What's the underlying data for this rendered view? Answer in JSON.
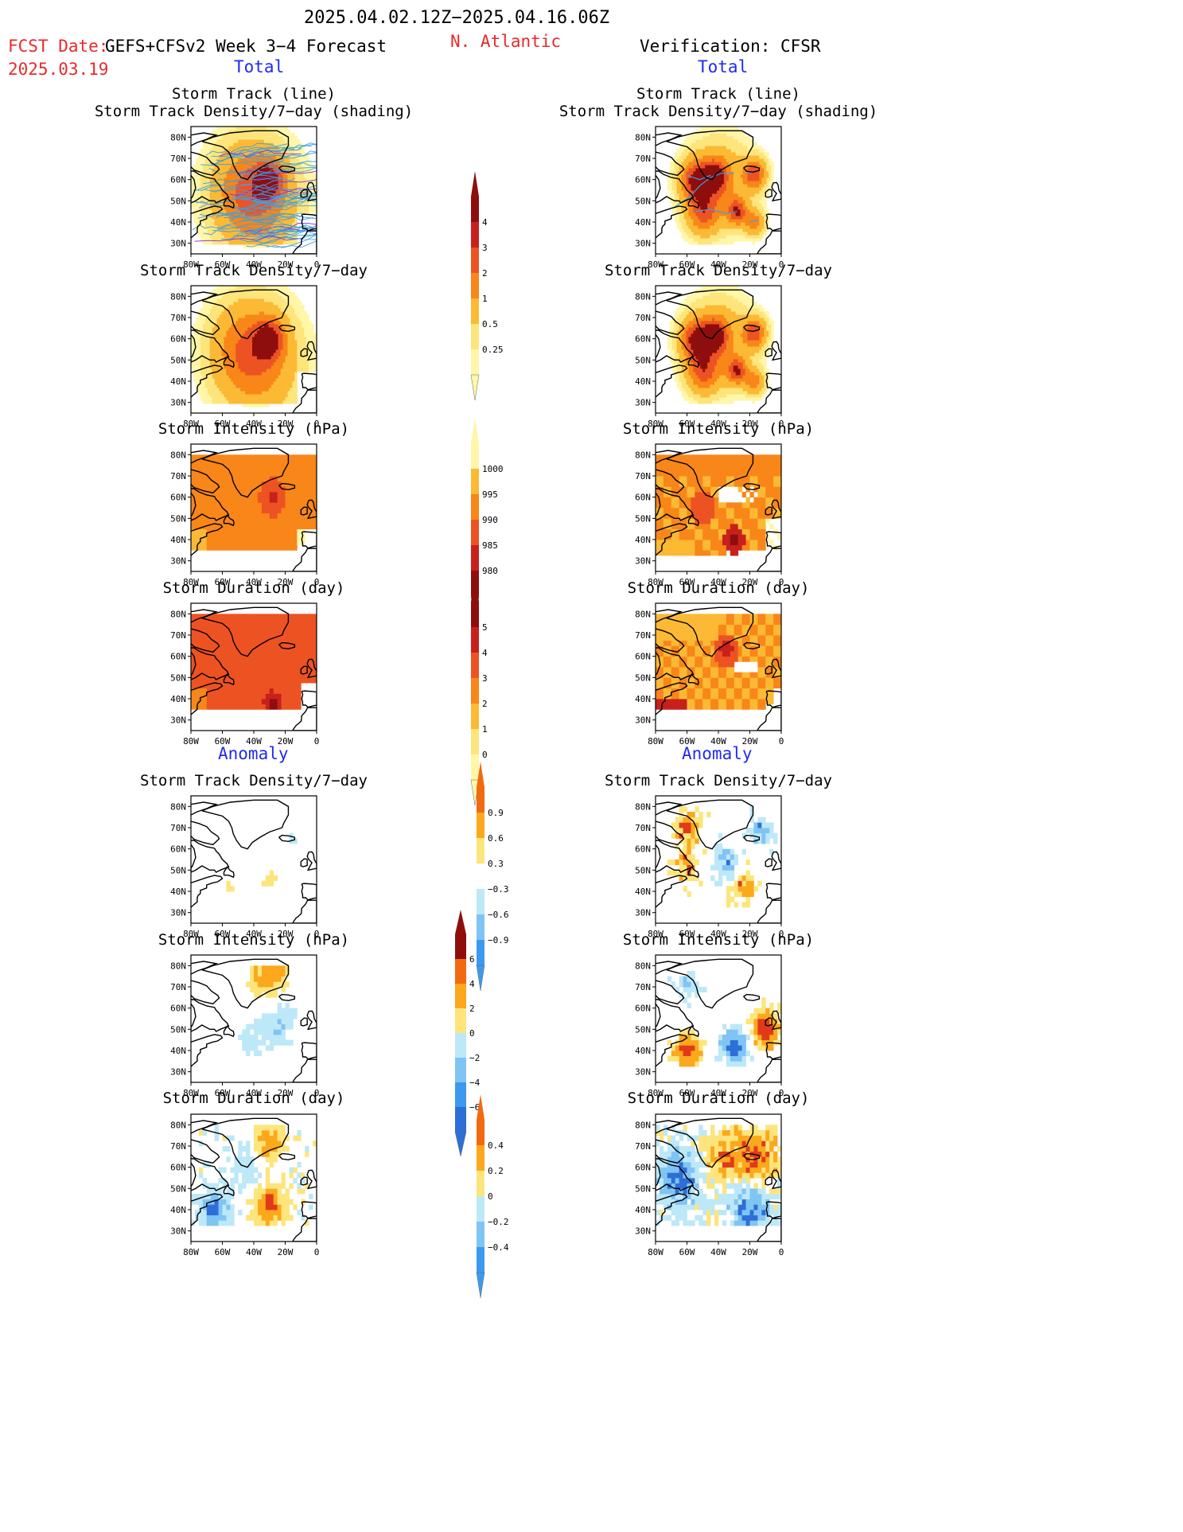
{
  "header": {
    "date_range": "2025.04.02.12Z−2025.04.16.06Z",
    "fcst_label": "FCST Date:",
    "fcst_product": "GEFS+CFSv2 Week 3−4 Forecast",
    "fcst_date": "2025.03.19",
    "region": "N. Atlantic",
    "verification": "Verification: CFSR",
    "total_left": "Total",
    "total_right": "Total",
    "anomaly_left": "Anomaly",
    "anomaly_right": "Anomaly"
  },
  "axes": {
    "lat_ticks": [
      "80N",
      "70N",
      "60N",
      "50N",
      "40N",
      "30N"
    ],
    "lon_ticks": [
      "80W",
      "60W",
      "40W",
      "20W",
      "0"
    ]
  },
  "titles": {
    "track_line": "Storm Track (line)",
    "track_shading": "Storm Track Density/7−day (shading)",
    "density": "Storm Track Density/7−day",
    "intensity": "Storm Intensity (hPa)",
    "duration": "Storm Duration (day)"
  },
  "colors": {
    "total_density": [
      "#fff6a8",
      "#fde57c",
      "#fbb934",
      "#f88618",
      "#ed5322",
      "#c8201c",
      "#8e0e0e"
    ],
    "intensity": [
      "#fff6a8",
      "#fbb934",
      "#f88618",
      "#ed5322",
      "#c8201c",
      "#8e0e0e"
    ],
    "anomaly": [
      "#2c6fd8",
      "#3b9af0",
      "#80c4f4",
      "#bde8f7",
      "#ffffff",
      "#fde57c",
      "#fca81c",
      "#f26a10",
      "#e13a1a",
      "#8e0e0e"
    ],
    "track_line": "#3fa0e0"
  },
  "chart_data": [
    {
      "type": "heatmap",
      "name": "fcst-total-track-density",
      "panel": "forecast total",
      "title": "Storm Track (line) / Storm Track Density/7−day (shading)",
      "xlim": [
        -80,
        0
      ],
      "ylim": [
        25,
        85
      ],
      "blobs": [
        {
          "lon": -30,
          "lat": 60,
          "value": 3.2,
          "r": 9
        },
        {
          "lon": -45,
          "lat": 55,
          "value": 2.2,
          "r": 22
        },
        {
          "lon": -35,
          "lat": 48,
          "value": 1.6,
          "r": 26
        }
      ],
      "tracks": "many forecast ensemble storm tracks across 30N–80N"
    },
    {
      "type": "heatmap",
      "name": "obs-total-track-density",
      "panel": "verification total",
      "title": "Storm Track (line) / Storm Track Density/7−day (shading)",
      "xlim": [
        -80,
        0
      ],
      "ylim": [
        25,
        85
      ],
      "blobs": [
        {
          "lon": -55,
          "lat": 60,
          "value": 3.4,
          "r": 9
        },
        {
          "lon": -42,
          "lat": 62,
          "value": 3.2,
          "r": 8
        },
        {
          "lon": -17,
          "lat": 63,
          "value": 3.5,
          "r": 7
        },
        {
          "lon": -50,
          "lat": 45,
          "value": 2.8,
          "r": 10
        },
        {
          "lon": -28,
          "lat": 45,
          "value": 3.4,
          "r": 6
        },
        {
          "lon": -17,
          "lat": 40,
          "value": 2.4,
          "r": 6
        },
        {
          "lon": -40,
          "lat": 58,
          "value": 2.0,
          "r": 20
        }
      ]
    },
    {
      "type": "heatmap",
      "name": "fcst-intensity",
      "title": "Storm Intensity (hPa)",
      "xlim": [
        -80,
        0
      ],
      "ylim": [
        25,
        85
      ],
      "levels": [
        1000,
        995,
        990,
        985,
        980
      ],
      "typical_value": 992,
      "min_value": 986,
      "min_at": {
        "lon": -28,
        "lat": 60
      }
    },
    {
      "type": "heatmap",
      "name": "obs-intensity",
      "title": "Storm Intensity (hPa)",
      "xlim": [
        -80,
        0
      ],
      "ylim": [
        25,
        85
      ],
      "typical_value": 992,
      "min_value": 982,
      "min_at": {
        "lon": -30,
        "lat": 40
      }
    },
    {
      "type": "heatmap",
      "name": "fcst-duration",
      "title": "Storm Duration (day)",
      "xlim": [
        -80,
        0
      ],
      "ylim": [
        25,
        85
      ],
      "levels": [
        0,
        1,
        2,
        3,
        4,
        5
      ],
      "typical_value": 3.4,
      "max_value": 5.2,
      "max_at": {
        "lon": -28,
        "lat": 38
      }
    },
    {
      "type": "heatmap",
      "name": "obs-duration",
      "title": "Storm Duration (day)",
      "xlim": [
        -80,
        0
      ],
      "ylim": [
        25,
        85
      ],
      "typical_value": 2.4,
      "max_value": 4.6,
      "max_at": {
        "lon": -35,
        "lat": 63
      }
    },
    {
      "type": "heatmap",
      "name": "fcst-anom-density",
      "title": "Storm Track Density/7−day",
      "xlim": [
        -80,
        0
      ],
      "ylim": [
        25,
        85
      ],
      "levels": [
        -0.9,
        -0.6,
        -0.3,
        0.3,
        0.6,
        0.9
      ],
      "features": [
        {
          "lon": -30,
          "lat": 45,
          "value": 0.6
        },
        {
          "lon": -55,
          "lat": 42,
          "value": 0.35
        },
        {
          "lon": -15,
          "lat": 65,
          "value": -0.35
        }
      ]
    },
    {
      "type": "heatmap",
      "name": "obs-anom-density",
      "title": "Storm Track Density/7−day",
      "xlim": [
        -80,
        0
      ],
      "ylim": [
        25,
        85
      ],
      "features": [
        {
          "lon": -60,
          "lat": 70,
          "value": 1.0
        },
        {
          "lon": -60,
          "lat": 52,
          "value": 0.8
        },
        {
          "lon": -25,
          "lat": 42,
          "value": 0.9
        },
        {
          "lon": -35,
          "lat": 52,
          "value": -0.9
        },
        {
          "lon": -12,
          "lat": 68,
          "value": -0.8
        }
      ]
    },
    {
      "type": "heatmap",
      "name": "fcst-anom-intensity",
      "title": "Storm Intensity (hPa)",
      "xlim": [
        -80,
        0
      ],
      "ylim": [
        25,
        85
      ],
      "levels": [
        -6,
        -4,
        -2,
        0,
        2,
        4,
        6
      ],
      "features": [
        {
          "lon": -30,
          "lat": 75,
          "value": 3
        },
        {
          "lon": -25,
          "lat": 55,
          "value": -2
        },
        {
          "lon": -45,
          "lat": 45,
          "value": -1
        }
      ]
    },
    {
      "type": "heatmap",
      "name": "obs-anom-intensity",
      "title": "Storm Intensity (hPa)",
      "xlim": [
        -80,
        0
      ],
      "ylim": [
        25,
        85
      ],
      "features": [
        {
          "lon": -60,
          "lat": 70,
          "value": -2
        },
        {
          "lon": -10,
          "lat": 50,
          "value": 6
        },
        {
          "lon": -30,
          "lat": 42,
          "value": -5
        },
        {
          "lon": -60,
          "lat": 40,
          "value": 5
        }
      ]
    },
    {
      "type": "heatmap",
      "name": "fcst-anom-duration",
      "title": "Storm Duration (day)",
      "xlim": [
        -80,
        0
      ],
      "ylim": [
        25,
        85
      ],
      "levels": [
        -0.4,
        -0.2,
        0,
        0.2,
        0.4
      ],
      "features": [
        {
          "lon": -30,
          "lat": 42,
          "value": 0.4
        },
        {
          "lon": -65,
          "lat": 40,
          "value": -0.4
        },
        {
          "lon": -30,
          "lat": 72,
          "value": 0.3
        },
        {
          "lon": -45,
          "lat": 60,
          "value": -0.15
        }
      ]
    },
    {
      "type": "heatmap",
      "name": "obs-anom-duration",
      "title": "Storm Duration (day)",
      "xlim": [
        -80,
        0
      ],
      "ylim": [
        25,
        85
      ],
      "features": [
        {
          "lon": -65,
          "lat": 55,
          "value": -0.45
        },
        {
          "lon": -20,
          "lat": 40,
          "value": -0.4
        },
        {
          "lon": -35,
          "lat": 65,
          "value": 0.3
        },
        {
          "lon": -15,
          "lat": 65,
          "value": 0.4
        }
      ]
    }
  ],
  "colorbars": [
    {
      "name": "cbar-density",
      "labels": [
        "4",
        "3",
        "2",
        "1",
        "0.5",
        "0.25"
      ]
    },
    {
      "name": "cbar-intensity",
      "labels": [
        "1000",
        "995",
        "990",
        "985",
        "980"
      ]
    },
    {
      "name": "cbar-duration",
      "labels": [
        "5",
        "4",
        "3",
        "2",
        "1",
        "0"
      ]
    },
    {
      "name": "cbar-anom-density",
      "labels": [
        "0.9",
        "0.6",
        "0.3",
        "−0.3",
        "−0.6",
        "−0.9"
      ]
    },
    {
      "name": "cbar-anom-intensity",
      "labels": [
        "6",
        "4",
        "2",
        "0",
        "−2",
        "−4",
        "−6"
      ]
    },
    {
      "name": "cbar-anom-duration",
      "labels": [
        "0.4",
        "0.2",
        "0",
        "−0.2",
        "−0.4"
      ]
    }
  ]
}
